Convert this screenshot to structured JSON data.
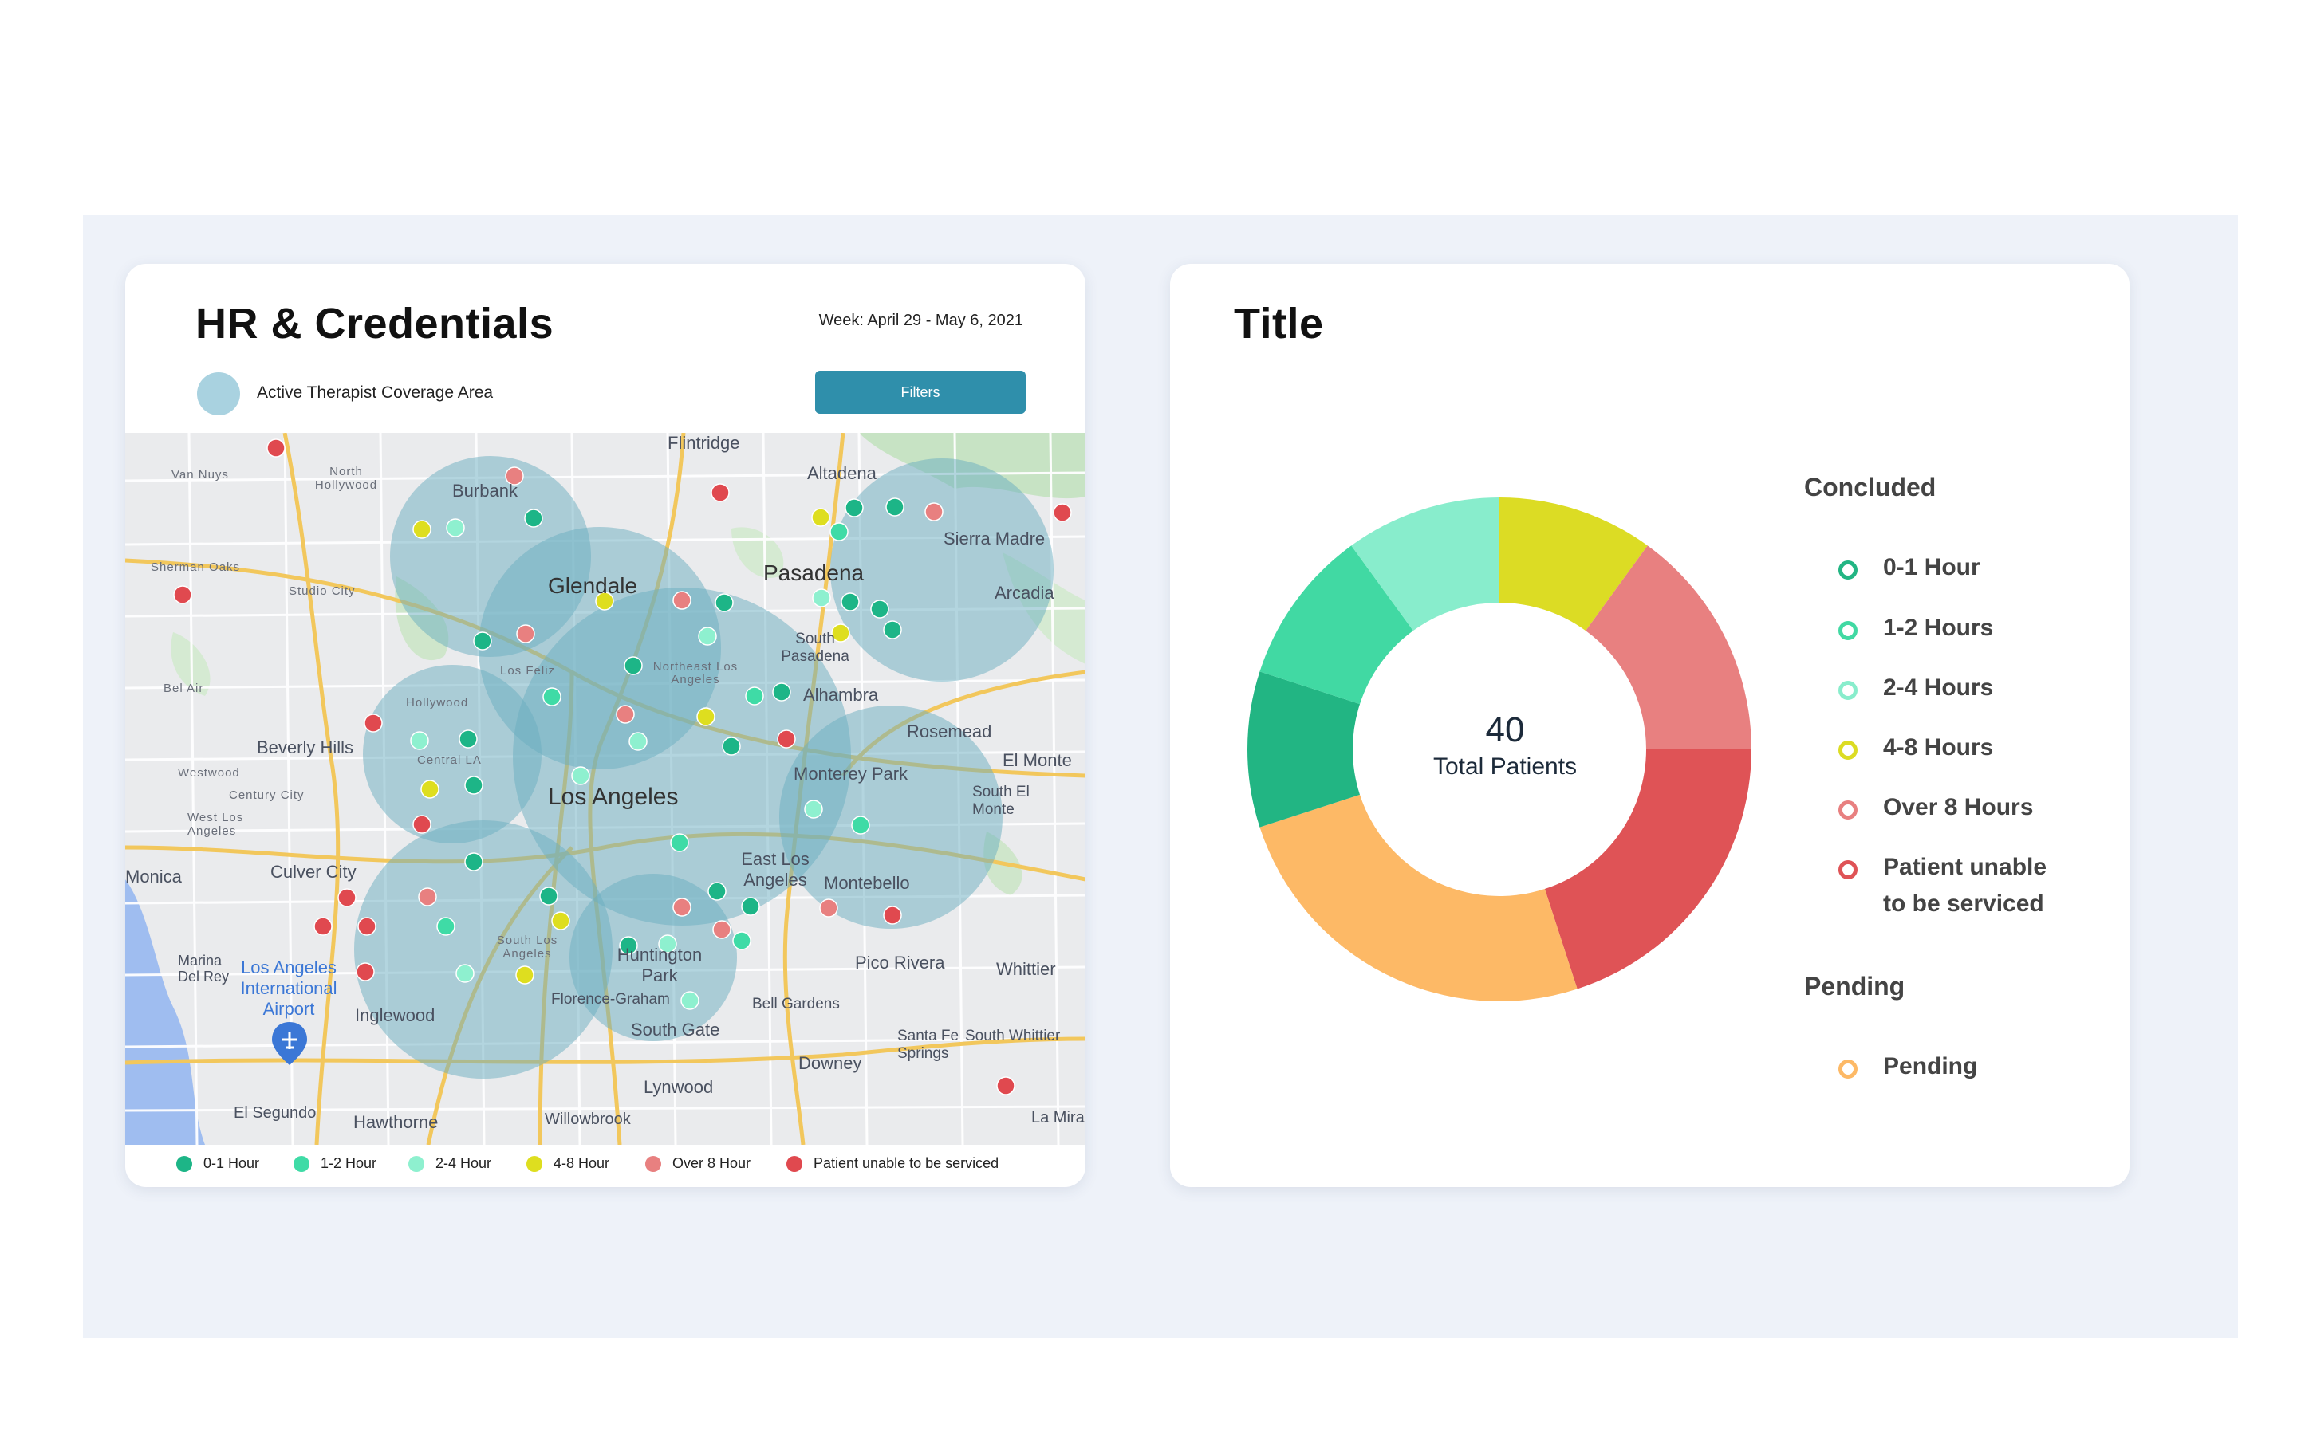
{
  "map_panel": {
    "title": "HR & Credentials",
    "week": "Week: April 29 - May 6, 2021",
    "coverage_label": "Active Therapist Coverage Area",
    "filters_label": "Filters",
    "legend": [
      {
        "label": "0-1 Hour",
        "color": "#1db587"
      },
      {
        "label": "1-2 Hour",
        "color": "#3fdba6"
      },
      {
        "label": "2-4 Hour",
        "color": "#8ef0cf"
      },
      {
        "label": "4-8 Hour",
        "color": "#dede1f"
      },
      {
        "label": "Over 8 Hour",
        "color": "#e88080"
      },
      {
        "label": "Patient unable to be serviced",
        "color": "#e0494f"
      }
    ],
    "places": [
      "Flintridge",
      "Altadena",
      "Van Nuys",
      "North Hollywood",
      "Burbank",
      "Sierra Madre",
      "Sherman Oaks",
      "Studio City",
      "Glendale",
      "Pasadena",
      "Arcadia",
      "South Pasadena",
      "Los Feliz",
      "Northeast Los Angeles",
      "Bel Air",
      "Hollywood",
      "Alhambra",
      "Rosemead",
      "Beverly Hills",
      "Central LA",
      "Monterey Park",
      "El Monte",
      "Westwood",
      "Century City",
      "South El Monte",
      "Los Angeles",
      "West Los Angeles",
      "East Los Angeles",
      "Monica",
      "Culver City",
      "Montebello",
      "Marina Del Rey",
      "Los Angeles International Airport",
      "South Los Angeles",
      "Huntington Park",
      "Pico Rivera",
      "Whittier",
      "Inglewood",
      "Florence-Graham",
      "Bell Gardens",
      "South Gate",
      "Santa Fe Springs",
      "South Whittier",
      "Downey",
      "Lynwood",
      "El Segundo",
      "Hawthorne",
      "Willowbrook",
      "La Mira"
    ]
  },
  "chart_panel": {
    "title": "Title",
    "center_value": "40",
    "center_label": "Total Patients",
    "concluded_heading": "Concluded",
    "pending_heading": "Pending",
    "legend_concluded": [
      {
        "label": "0-1 Hour",
        "color": "#22b583"
      },
      {
        "label": "1-2 Hours",
        "color": "#41d9a3"
      },
      {
        "label": "2-4 Hours",
        "color": "#88edcc"
      },
      {
        "label": "4-8 Hours",
        "color": "#dcdc24"
      },
      {
        "label": "Over 8 Hours",
        "color": "#e88080"
      },
      {
        "label": "Patient unable",
        "label2": "to be serviced",
        "color": "#df5356"
      }
    ],
    "legend_pending": [
      {
        "label": "Pending",
        "color": "#fdb966"
      }
    ]
  },
  "chart_data": {
    "type": "pie",
    "center_value": 40,
    "slices": [
      {
        "name": "4-8 Hours",
        "value": 4,
        "color": "#dcdc24"
      },
      {
        "name": "Over 8 Hours",
        "value": 6,
        "color": "#e88080"
      },
      {
        "name": "Patient unable to be serviced",
        "value": 8,
        "color": "#df5356"
      },
      {
        "name": "Pending",
        "value": 10,
        "color": "#fdb966"
      },
      {
        "name": "0-1 Hour",
        "value": 4,
        "color": "#22b583"
      },
      {
        "name": "1-2 Hours",
        "value": 4,
        "color": "#41d9a3"
      },
      {
        "name": "2-4 Hours",
        "value": 4,
        "color": "#88edcc"
      }
    ]
  }
}
